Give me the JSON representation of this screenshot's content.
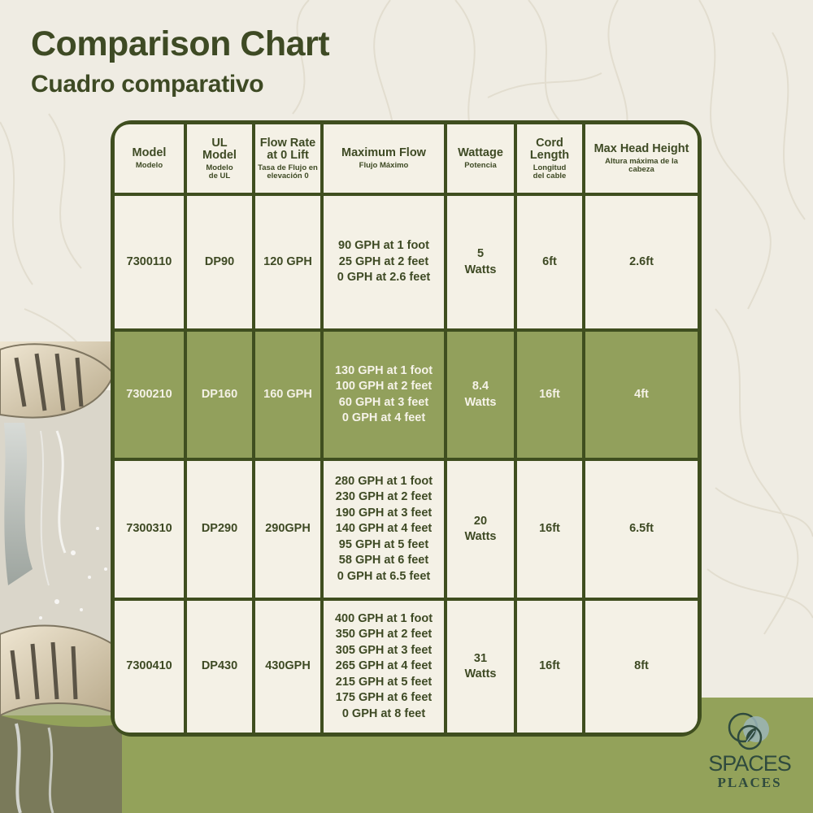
{
  "title": "Comparison Chart",
  "subtitle": "Cuadro comparativo",
  "colors": {
    "dark_green": "#3f4e1f",
    "highlight_green": "#92a05c",
    "cream": "#f4f1e6",
    "background": "#efece3"
  },
  "table": {
    "headers": [
      {
        "main": "Model",
        "sub": "Modelo"
      },
      {
        "main": "UL Model",
        "sub": "Modelo de UL"
      },
      {
        "main": "Flow Rate at 0 Lift",
        "sub": "Tasa de Flujo en elevación 0"
      },
      {
        "main": "Maximum Flow",
        "sub": "Flujo Máximo"
      },
      {
        "main": "Wattage",
        "sub": "Potencia"
      },
      {
        "main": "Cord Length",
        "sub": "Longitud del cable"
      },
      {
        "main": "Max Head Height",
        "sub": "Altura máxima de la cabeza"
      }
    ],
    "rows": [
      {
        "model": "7300110",
        "ul_model": "DP90",
        "flow_rate": "120 GPH",
        "max_flow": [
          "90 GPH at 1 foot",
          "25 GPH at 2 feet",
          "0 GPH at 2.6 feet"
        ],
        "wattage": [
          "5",
          "Watts"
        ],
        "cord_length": "6ft",
        "max_head": "2.6ft",
        "highlighted": false
      },
      {
        "model": "7300210",
        "ul_model": "DP160",
        "flow_rate": "160 GPH",
        "max_flow": [
          "130 GPH at 1 foot",
          "100 GPH at 2 feet",
          "60 GPH at 3 feet",
          "0 GPH at 4 feet"
        ],
        "wattage": [
          "8.4",
          "Watts"
        ],
        "cord_length": "16ft",
        "max_head": "4ft",
        "highlighted": true
      },
      {
        "model": "7300310",
        "ul_model": "DP290",
        "flow_rate": "290GPH",
        "max_flow": [
          "280 GPH at 1 foot",
          "230 GPH at 2 feet",
          "190 GPH at 3 feet",
          "140 GPH at 4 feet",
          "95 GPH at 5 feet",
          "58 GPH at 6 feet",
          "0 GPH at 6.5 feet"
        ],
        "wattage": [
          "20",
          "Watts"
        ],
        "cord_length": "16ft",
        "max_head": "6.5ft",
        "highlighted": false
      },
      {
        "model": "7300410",
        "ul_model": "DP430",
        "flow_rate": "430GPH",
        "max_flow": [
          "400 GPH at 1 foot",
          "350 GPH at 2 feet",
          "305 GPH at 3 feet",
          "265 GPH at 4 feet",
          "215 GPH at 5 feet",
          "175 GPH at 6 feet",
          "0 GPH at 8 feet"
        ],
        "wattage": [
          "31",
          "Watts"
        ],
        "cord_length": "16ft",
        "max_head": "8ft",
        "highlighted": false
      }
    ]
  },
  "logo": {
    "line1": "SPACES",
    "line2": "PLACES"
  }
}
